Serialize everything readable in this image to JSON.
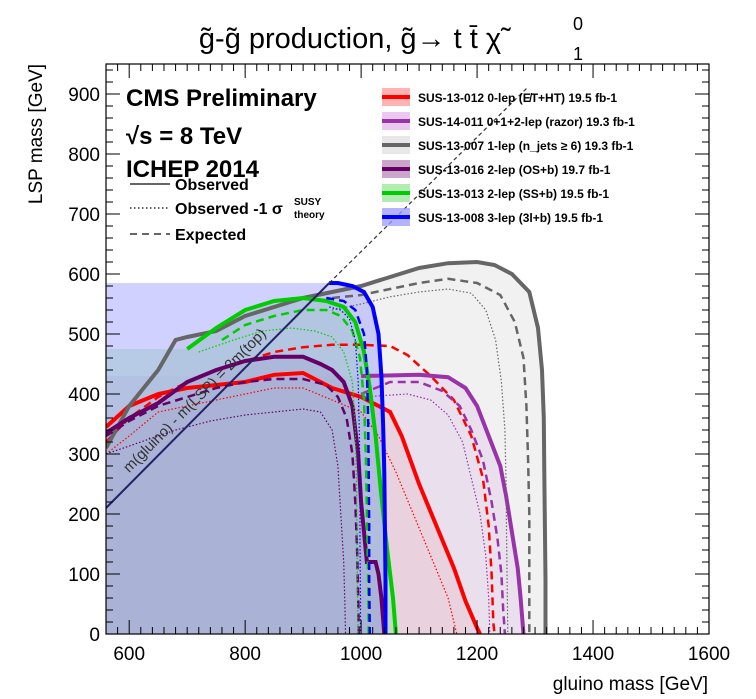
{
  "chart_data": {
    "type": "area",
    "title": "g̃-g̃ production,  g̃→ t t̄ χ̃",
    "title_sup": "0",
    "title_sub": "1",
    "xlabel": "gluino mass [GeV]",
    "ylabel": "LSP mass [GeV]",
    "xlim": [
      560,
      1600
    ],
    "ylim": [
      0,
      950
    ],
    "xticks": [
      600,
      800,
      1000,
      1200,
      1400,
      1600
    ],
    "yticks": [
      0,
      100,
      200,
      300,
      400,
      500,
      600,
      700,
      800,
      900
    ],
    "grid": false,
    "cms_label": "CMS Preliminary",
    "energy_label": "√s = 8 TeV",
    "conference_label": "ICHEP 2014",
    "style_legend": [
      {
        "label": "Observed",
        "dash": "solid"
      },
      {
        "label": "Observed -1 σ",
        "sup": "SUSY",
        "sub": "theory",
        "dash": "dotted"
      },
      {
        "label": "Expected",
        "dash": "dashed"
      }
    ],
    "diagonal_label": "m(gluino) - m(LSP) = 2m(top)",
    "diagonal": [
      [
        560,
        210
      ],
      [
        945,
        585
      ]
    ],
    "series": [
      {
        "name": "SUS-13-012 0-lep (E̸T+HT) 19.5 fb-1",
        "color": "#ff0000",
        "fill": "#ff9999",
        "observed": [
          [
            560,
            345
          ],
          [
            600,
            380
          ],
          [
            650,
            400
          ],
          [
            700,
            410
          ],
          [
            750,
            415
          ],
          [
            800,
            420
          ],
          [
            850,
            432
          ],
          [
            900,
            435
          ],
          [
            950,
            410
          ],
          [
            1000,
            395
          ],
          [
            1050,
            370
          ],
          [
            1070,
            330
          ],
          [
            1100,
            250
          ],
          [
            1130,
            180
          ],
          [
            1160,
            110
          ],
          [
            1180,
            55
          ],
          [
            1200,
            10
          ],
          [
            1205,
            0
          ]
        ],
        "expected": [
          [
            560,
            320
          ],
          [
            600,
            360
          ],
          [
            650,
            395
          ],
          [
            700,
            420
          ],
          [
            750,
            440
          ],
          [
            800,
            455
          ],
          [
            850,
            470
          ],
          [
            900,
            478
          ],
          [
            950,
            482
          ],
          [
            1000,
            482
          ],
          [
            1050,
            480
          ],
          [
            1080,
            465
          ],
          [
            1120,
            430
          ],
          [
            1160,
            390
          ],
          [
            1190,
            330
          ],
          [
            1210,
            260
          ],
          [
            1220,
            180
          ],
          [
            1225,
            100
          ],
          [
            1228,
            20
          ],
          [
            1230,
            0
          ]
        ],
        "minus1": [
          [
            560,
            300
          ],
          [
            600,
            330
          ],
          [
            650,
            370
          ],
          [
            700,
            380
          ],
          [
            750,
            390
          ],
          [
            800,
            400
          ],
          [
            850,
            410
          ],
          [
            900,
            410
          ],
          [
            950,
            390
          ],
          [
            1000,
            370
          ],
          [
            1030,
            330
          ],
          [
            1060,
            270
          ],
          [
            1090,
            200
          ],
          [
            1120,
            130
          ],
          [
            1150,
            60
          ],
          [
            1165,
            0
          ]
        ]
      },
      {
        "name": "SUS-14-011 0+1+2-lep (razor) 19.3 fb-1",
        "color": "#9933aa",
        "fill": "#e3b5ea",
        "observed": [
          [
            1000,
            430
          ],
          [
            1100,
            432
          ],
          [
            1150,
            428
          ],
          [
            1180,
            410
          ],
          [
            1200,
            380
          ],
          [
            1220,
            330
          ],
          [
            1240,
            280
          ],
          [
            1250,
            230
          ],
          [
            1260,
            170
          ],
          [
            1270,
            110
          ],
          [
            1275,
            60
          ],
          [
            1280,
            0
          ]
        ],
        "expected": [
          [
            1000,
            400
          ],
          [
            1050,
            420
          ],
          [
            1100,
            420
          ],
          [
            1140,
            405
          ],
          [
            1170,
            380
          ],
          [
            1190,
            340
          ],
          [
            1210,
            290
          ],
          [
            1225,
            220
          ],
          [
            1235,
            160
          ],
          [
            1242,
            100
          ],
          [
            1245,
            40
          ],
          [
            1248,
            0
          ]
        ],
        "minus1": [
          [
            1000,
            395
          ],
          [
            1080,
            400
          ],
          [
            1120,
            390
          ],
          [
            1150,
            365
          ],
          [
            1175,
            320
          ],
          [
            1190,
            260
          ],
          [
            1205,
            200
          ],
          [
            1215,
            130
          ],
          [
            1220,
            60
          ],
          [
            1222,
            0
          ]
        ]
      },
      {
        "name": "SUS-13-007 1-lep (n_jets ≥ 6) 19.3 fb-1",
        "color": "#666666",
        "fill": "#e0e0e0",
        "observed": [
          [
            560,
            310
          ],
          [
            600,
            380
          ],
          [
            650,
            440
          ],
          [
            680,
            490
          ],
          [
            700,
            495
          ],
          [
            750,
            505
          ],
          [
            800,
            530
          ],
          [
            850,
            545
          ],
          [
            900,
            560
          ],
          [
            950,
            570
          ],
          [
            1000,
            580
          ],
          [
            1050,
            595
          ],
          [
            1100,
            610
          ],
          [
            1150,
            618
          ],
          [
            1200,
            620
          ],
          [
            1230,
            615
          ],
          [
            1260,
            600
          ],
          [
            1290,
            570
          ],
          [
            1305,
            510
          ],
          [
            1312,
            440
          ],
          [
            1315,
            360
          ],
          [
            1316,
            270
          ],
          [
            1317,
            180
          ],
          [
            1318,
            90
          ],
          [
            1318,
            0
          ]
        ],
        "expected": [
          [
            950,
            560
          ],
          [
            1000,
            565
          ],
          [
            1050,
            575
          ],
          [
            1100,
            585
          ],
          [
            1150,
            592
          ],
          [
            1200,
            585
          ],
          [
            1240,
            565
          ],
          [
            1265,
            520
          ],
          [
            1280,
            460
          ],
          [
            1285,
            380
          ],
          [
            1288,
            290
          ],
          [
            1290,
            200
          ],
          [
            1290,
            100
          ],
          [
            1290,
            0
          ]
        ],
        "minus1": [
          [
            950,
            540
          ],
          [
            1000,
            550
          ],
          [
            1050,
            562
          ],
          [
            1100,
            570
          ],
          [
            1150,
            575
          ],
          [
            1190,
            568
          ],
          [
            1215,
            540
          ],
          [
            1232,
            490
          ],
          [
            1242,
            420
          ],
          [
            1248,
            340
          ],
          [
            1250,
            250
          ],
          [
            1251,
            160
          ],
          [
            1252,
            80
          ],
          [
            1253,
            0
          ]
        ]
      },
      {
        "name": "SUS-13-016 2-lep (OS+b) 19.7 fb-1",
        "color": "#660066",
        "fill": "#b88ab8",
        "observed": [
          [
            560,
            335
          ],
          [
            600,
            360
          ],
          [
            650,
            385
          ],
          [
            700,
            420
          ],
          [
            750,
            440
          ],
          [
            800,
            455
          ],
          [
            850,
            462
          ],
          [
            900,
            462
          ],
          [
            930,
            450
          ],
          [
            950,
            440
          ],
          [
            970,
            420
          ],
          [
            985,
            380
          ],
          [
            995,
            300
          ],
          [
            1000,
            220
          ],
          [
            1005,
            170
          ],
          [
            1010,
            120
          ],
          [
            1025,
            120
          ],
          [
            1030,
            100
          ],
          [
            1035,
            60
          ],
          [
            1040,
            0
          ]
        ],
        "expected": [
          [
            560,
            330
          ],
          [
            600,
            355
          ],
          [
            650,
            380
          ],
          [
            700,
            395
          ],
          [
            750,
            410
          ],
          [
            800,
            420
          ],
          [
            850,
            425
          ],
          [
            900,
            425
          ],
          [
            940,
            415
          ],
          [
            960,
            395
          ],
          [
            975,
            360
          ],
          [
            985,
            300
          ],
          [
            990,
            220
          ],
          [
            993,
            140
          ],
          [
            995,
            60
          ],
          [
            996,
            0
          ]
        ],
        "minus1": [
          [
            560,
            300
          ],
          [
            620,
            320
          ],
          [
            680,
            340
          ],
          [
            740,
            355
          ],
          [
            800,
            365
          ],
          [
            850,
            370
          ],
          [
            900,
            375
          ],
          [
            930,
            370
          ],
          [
            950,
            340
          ],
          [
            960,
            280
          ],
          [
            965,
            200
          ],
          [
            970,
            120
          ],
          [
            972,
            50
          ],
          [
            973,
            0
          ]
        ]
      },
      {
        "name": "SUS-13-013 2-lep (SS+b) 19.5 fb-1",
        "color": "#00cc00",
        "fill": "#99e699",
        "observed": [
          [
            700,
            475
          ],
          [
            750,
            510
          ],
          [
            800,
            540
          ],
          [
            850,
            555
          ],
          [
            900,
            560
          ],
          [
            940,
            555
          ],
          [
            970,
            545
          ],
          [
            990,
            520
          ],
          [
            1005,
            470
          ],
          [
            1015,
            410
          ],
          [
            1025,
            330
          ],
          [
            1035,
            230
          ],
          [
            1045,
            140
          ],
          [
            1055,
            60
          ],
          [
            1060,
            0
          ]
        ],
        "expected": [
          [
            760,
            490
          ],
          [
            800,
            515
          ],
          [
            850,
            530
          ],
          [
            900,
            540
          ],
          [
            940,
            540
          ],
          [
            965,
            530
          ],
          [
            985,
            505
          ],
          [
            998,
            460
          ],
          [
            1005,
            390
          ],
          [
            1008,
            300
          ],
          [
            1010,
            200
          ],
          [
            1012,
            100
          ],
          [
            1013,
            0
          ]
        ],
        "minus1": [
          [
            720,
            470
          ],
          [
            780,
            490
          ],
          [
            830,
            505
          ],
          [
            880,
            510
          ],
          [
            920,
            505
          ],
          [
            950,
            495
          ],
          [
            970,
            470
          ],
          [
            985,
            420
          ],
          [
            990,
            340
          ],
          [
            992,
            250
          ],
          [
            993,
            150
          ],
          [
            994,
            50
          ],
          [
            995,
            0
          ]
        ]
      },
      {
        "name": "SUS-13-008 3-lep (3l+b) 19.5 fb-1",
        "color": "#0000ff",
        "fill": "#9999ff",
        "observed": [
          [
            945,
            585
          ],
          [
            960,
            585
          ],
          [
            985,
            580
          ],
          [
            1005,
            570
          ],
          [
            1020,
            545
          ],
          [
            1030,
            500
          ],
          [
            1035,
            430
          ],
          [
            1038,
            350
          ],
          [
            1040,
            270
          ],
          [
            1041,
            180
          ],
          [
            1042,
            90
          ],
          [
            1042,
            0
          ]
        ],
        "expected": [
          [
            940,
            560
          ],
          [
            970,
            555
          ],
          [
            990,
            540
          ],
          [
            1005,
            500
          ],
          [
            1010,
            440
          ],
          [
            1012,
            360
          ],
          [
            1013,
            270
          ],
          [
            1014,
            180
          ],
          [
            1014,
            90
          ],
          [
            1015,
            0
          ]
        ],
        "minus1": [
          [
            945,
            545
          ],
          [
            965,
            540
          ],
          [
            980,
            525
          ],
          [
            990,
            490
          ],
          [
            995,
            420
          ],
          [
            997,
            330
          ],
          [
            998,
            240
          ],
          [
            998,
            150
          ],
          [
            999,
            60
          ],
          [
            999,
            0
          ]
        ]
      }
    ]
  }
}
